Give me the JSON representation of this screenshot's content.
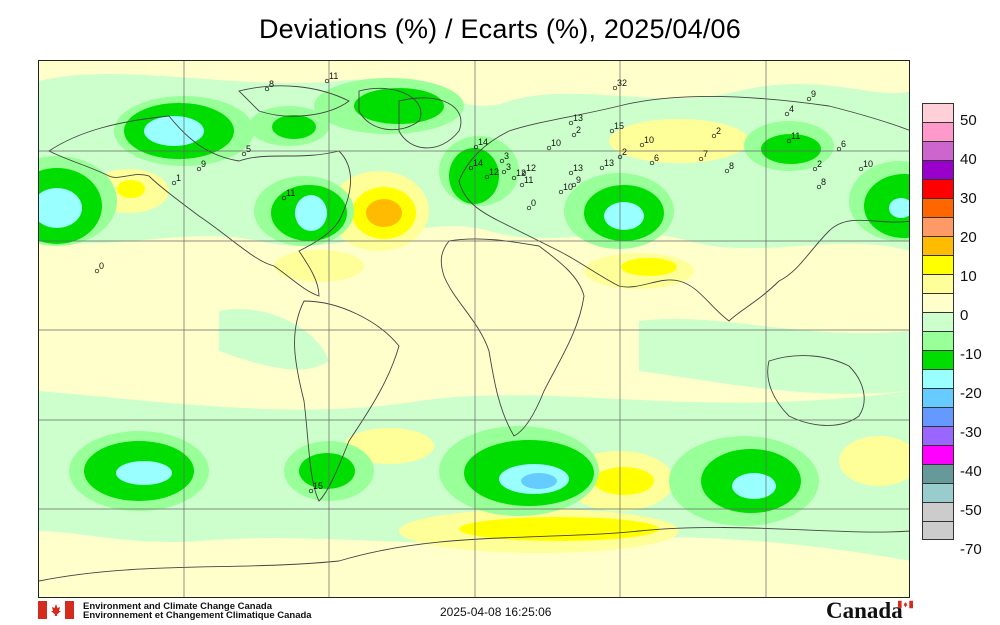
{
  "title": "Deviations (%) / Ecarts (%), 2025/04/06",
  "legend": {
    "colors": [
      "#ffd0d8",
      "#ff99cc",
      "#cc66cc",
      "#9900cc",
      "#ff0000",
      "#ff6600",
      "#ff9966",
      "#ffbb00",
      "#ffff00",
      "#ffff99",
      "#ffffcc",
      "#ccffcc",
      "#99ff99",
      "#00dd00",
      "#99ffff",
      "#66ccff",
      "#6699ff",
      "#9966ff",
      "#ff00ff",
      "#669999",
      "#99cccc",
      "#cccccc",
      "#cccccc"
    ],
    "labels": [
      "50",
      "40",
      "30",
      "20",
      "10",
      "0",
      "-10",
      "-20",
      "-30",
      "-40",
      "-50",
      "-70"
    ]
  },
  "footer": {
    "agency_en": "Environment and Climate Change Canada",
    "agency_fr": "Environnement et Changement Climatique Canada",
    "timestamp": "2025-04-08 16:25:06",
    "wordmark": "Canada"
  },
  "stations": [
    {
      "lbl": "8"
    },
    {
      "lbl": "11"
    },
    {
      "lbl": "9"
    },
    {
      "lbl": "5"
    },
    {
      "lbl": "1"
    },
    {
      "lbl": "11"
    },
    {
      "lbl": "0"
    },
    {
      "lbl": "14"
    },
    {
      "lbl": "14"
    },
    {
      "lbl": "12"
    },
    {
      "lbl": "3"
    },
    {
      "lbl": "12"
    },
    {
      "lbl": "11"
    },
    {
      "lbl": "12"
    },
    {
      "lbl": "3"
    },
    {
      "lbl": "10"
    },
    {
      "lbl": "0"
    },
    {
      "lbl": "13"
    },
    {
      "lbl": "2"
    },
    {
      "lbl": "15"
    },
    {
      "lbl": "13"
    },
    {
      "lbl": "13"
    },
    {
      "lbl": "10"
    },
    {
      "lbl": "9"
    },
    {
      "lbl": "2"
    },
    {
      "lbl": "10"
    },
    {
      "lbl": "6"
    },
    {
      "lbl": "32"
    },
    {
      "lbl": "2"
    },
    {
      "lbl": "7"
    },
    {
      "lbl": "4"
    },
    {
      "lbl": "9"
    },
    {
      "lbl": "11"
    },
    {
      "lbl": "6"
    },
    {
      "lbl": "2"
    },
    {
      "lbl": "8"
    },
    {
      "lbl": "8"
    },
    {
      "lbl": "10"
    },
    {
      "lbl": "15"
    }
  ]
}
